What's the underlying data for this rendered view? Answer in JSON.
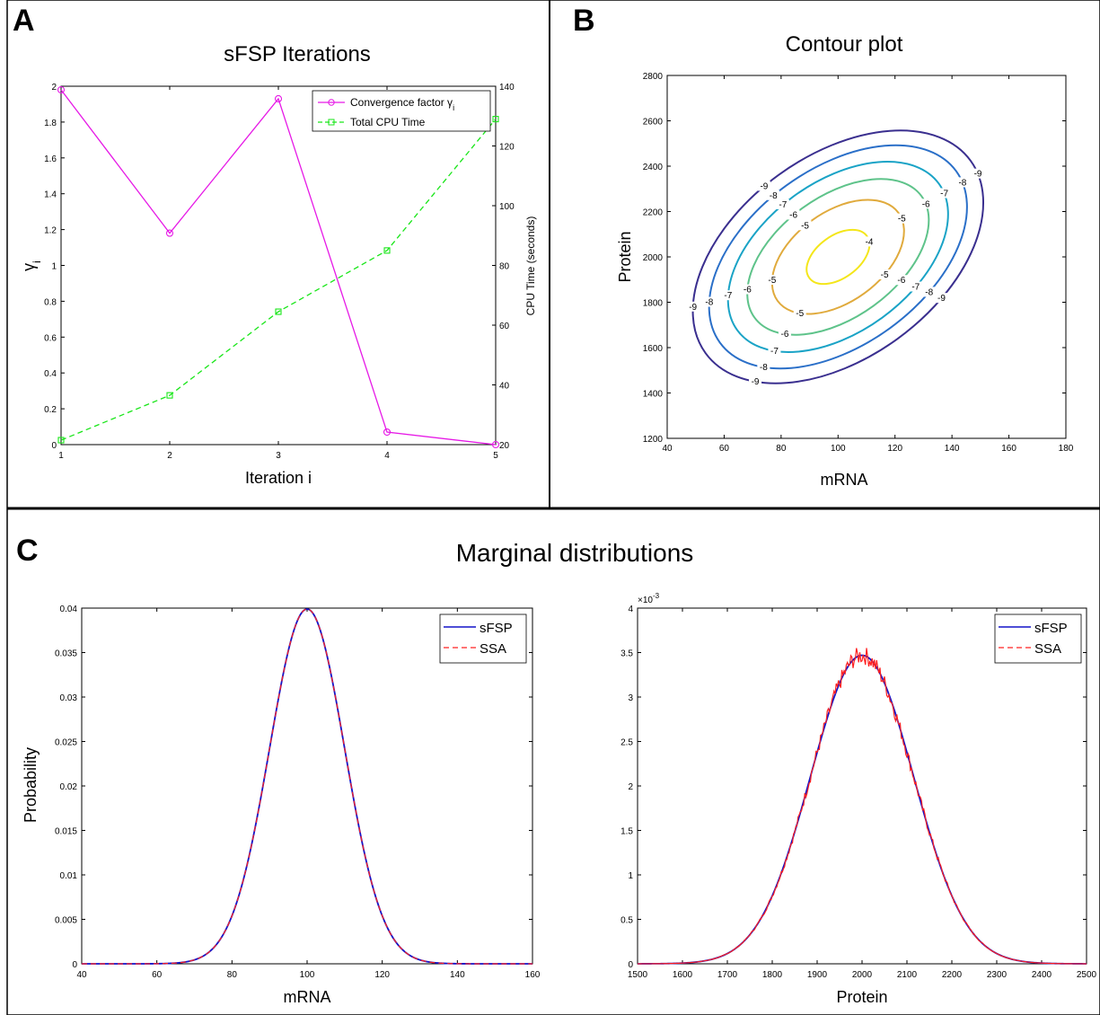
{
  "panels": {
    "a": {
      "letter": "A"
    },
    "b": {
      "letter": "B"
    },
    "c": {
      "letter": "C",
      "title": "Marginal distributions"
    }
  },
  "chart_data": [
    {
      "id": "a",
      "type": "line",
      "title": "sFSP Iterations",
      "xlabel": "Iteration i",
      "ylabel": "γ_i",
      "ylabel_right": "CPU Time (seconds)",
      "x": [
        1,
        2,
        3,
        4,
        5
      ],
      "xlim": [
        1,
        5
      ],
      "ylim": [
        0,
        2
      ],
      "ylim_right": [
        20,
        140
      ],
      "xticks": [
        "1",
        "2",
        "3",
        "4",
        "5"
      ],
      "yticks": [
        "0",
        "0.2",
        "0.4",
        "0.6",
        "0.8",
        "1",
        "1.2",
        "1.4",
        "1.6",
        "1.8",
        "2"
      ],
      "yticks_right": [
        "20",
        "40",
        "60",
        "80",
        "100",
        "120",
        "140"
      ],
      "legend_position": "top-right",
      "series": [
        {
          "name": "Convergence factor γ_i",
          "axis": "left",
          "values": [
            1.98,
            1.18,
            1.93,
            0.07,
            0.0
          ],
          "color": "#e619e6",
          "marker": "circle",
          "dash": "solid"
        },
        {
          "name": "Total CPU Time",
          "axis": "right",
          "values": [
            21.5,
            36.5,
            64.5,
            85,
            129
          ],
          "color": "#19e619",
          "marker": "square",
          "dash": "dashed"
        }
      ]
    },
    {
      "id": "b",
      "type": "contour",
      "title": "Contour plot",
      "xlabel": "mRNA",
      "ylabel": "Protein",
      "xlim": [
        40,
        180
      ],
      "ylim": [
        1200,
        2800
      ],
      "xticks": [
        "40",
        "60",
        "80",
        "100",
        "120",
        "140",
        "160",
        "180"
      ],
      "yticks": [
        "1200",
        "1400",
        "1600",
        "1800",
        "2000",
        "2200",
        "2400",
        "2600",
        "2800"
      ],
      "center": {
        "mrna": 100,
        "protein": 2000
      },
      "levels": [
        {
          "level": "-9",
          "mrna_halfwidth": 46,
          "protein_halfwidth": 620,
          "color": "#3a2f8f"
        },
        {
          "level": "-8",
          "mrna_halfwidth": 41,
          "protein_halfwidth": 540,
          "color": "#2a6fc8"
        },
        {
          "level": "-7",
          "mrna_halfwidth": 35,
          "protein_halfwidth": 460,
          "color": "#1aa3c6"
        },
        {
          "level": "-6",
          "mrna_halfwidth": 29,
          "protein_halfwidth": 370,
          "color": "#5ec38a"
        },
        {
          "level": "-5",
          "mrna_halfwidth": 21,
          "protein_halfwidth": 275,
          "color": "#e0aa3c"
        },
        {
          "level": "-4",
          "mrna_halfwidth": 10,
          "protein_halfwidth": 130,
          "color": "#f4e61a"
        }
      ]
    },
    {
      "id": "c1",
      "type": "line",
      "xlabel": "mRNA",
      "ylabel": "Probability",
      "xlim": [
        40,
        160
      ],
      "ylim": [
        0,
        0.04
      ],
      "xticks": [
        "40",
        "60",
        "80",
        "100",
        "120",
        "140",
        "160"
      ],
      "yticks": [
        "0",
        "0.005",
        "0.01",
        "0.015",
        "0.02",
        "0.025",
        "0.03",
        "0.035",
        "0.04"
      ],
      "legend_position": "top-right",
      "distribution": {
        "mean": 100,
        "sd": 10
      },
      "series": [
        {
          "name": "sFSP",
          "color": "#1414c8",
          "dash": "solid"
        },
        {
          "name": "SSA",
          "color": "#ff2020",
          "dash": "dashed"
        }
      ]
    },
    {
      "id": "c2",
      "type": "line",
      "xlabel": "Protein",
      "ylabel": "",
      "exponent_label": "×10",
      "exponent_power": "-3",
      "xlim": [
        1500,
        2500
      ],
      "ylim": [
        0,
        0.004
      ],
      "xticks": [
        "1500",
        "1600",
        "1700",
        "1800",
        "1900",
        "2000",
        "2100",
        "2200",
        "2300",
        "2400",
        "2500"
      ],
      "yticks": [
        "0",
        "0.5",
        "1",
        "1.5",
        "2",
        "2.5",
        "3",
        "3.5",
        "4"
      ],
      "legend_position": "top-right",
      "distribution": {
        "mean": 2000,
        "sd": 115
      },
      "series": [
        {
          "name": "sFSP",
          "color": "#1414c8",
          "dash": "solid"
        },
        {
          "name": "SSA",
          "color": "#ff2020",
          "dash": "dashed"
        }
      ]
    }
  ]
}
